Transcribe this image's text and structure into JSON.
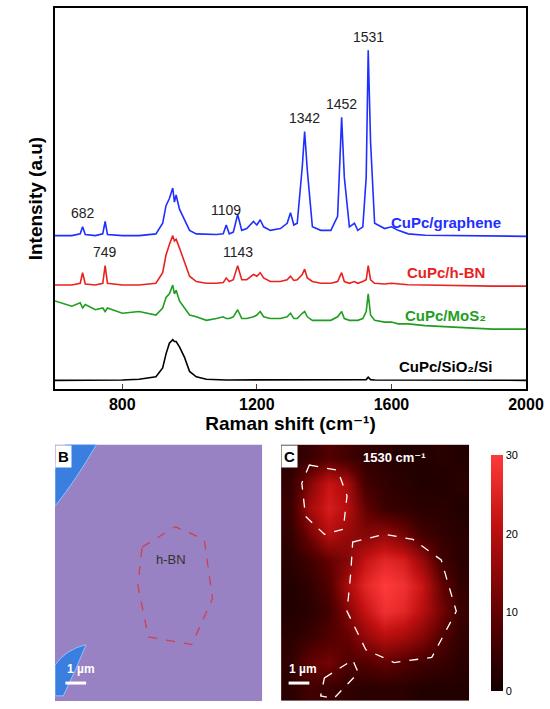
{
  "chart_data": [
    {
      "type": "line",
      "xlabel": "Raman shift (cm⁻¹)",
      "ylabel": "Intensity (a.u)",
      "xlim": [
        600,
        2000
      ],
      "xticks": [
        800,
        1200,
        1600,
        2000
      ],
      "ylim": [
        0,
        108
      ],
      "tick_labels": "x",
      "grid": false,
      "x": [
        600,
        650,
        675,
        682,
        690,
        720,
        742,
        749,
        756,
        800,
        850,
        900,
        920,
        930,
        940,
        950,
        955,
        960,
        970,
        985,
        1000,
        1020,
        1050,
        1080,
        1100,
        1109,
        1118,
        1130,
        1143,
        1155,
        1170,
        1190,
        1200,
        1210,
        1220,
        1240,
        1270,
        1290,
        1300,
        1310,
        1320,
        1335,
        1342,
        1350,
        1365,
        1390,
        1420,
        1440,
        1452,
        1460,
        1475,
        1490,
        1500,
        1515,
        1525,
        1531,
        1538,
        1550,
        1580,
        1600,
        1620,
        1650,
        1700,
        1800,
        1900,
        2000
      ],
      "series": [
        {
          "name": "CuPc/graphene",
          "color": "#1f2fff",
          "values": [
            43.5,
            43.5,
            44,
            46,
            43.8,
            43.5,
            44,
            47.5,
            43.8,
            43.5,
            43.5,
            44,
            47,
            52,
            54,
            57,
            53,
            55,
            51,
            48,
            45,
            44,
            43.8,
            43.8,
            44,
            46.5,
            44,
            44.5,
            49.5,
            45,
            45.5,
            47.5,
            46.5,
            48,
            46,
            45,
            45.5,
            47,
            50,
            46.5,
            47,
            63,
            73,
            62,
            46,
            45,
            45,
            49,
            77,
            60,
            46,
            47,
            45,
            46,
            60,
            96,
            70,
            47,
            45.5,
            46,
            45,
            44,
            43.6,
            43.5,
            43.3,
            43.3
          ]
        },
        {
          "name": "CuPc/h-BN",
          "color": "#e8231f",
          "values": [
            29.5,
            29.5,
            30,
            33,
            29.8,
            29.5,
            30,
            35,
            30,
            29.5,
            29.5,
            30,
            33,
            38,
            41,
            43.5,
            42,
            42.5,
            40,
            36,
            32,
            30.5,
            30,
            30,
            30.2,
            31.5,
            30.5,
            31,
            35,
            31,
            31,
            32.5,
            32,
            33,
            31.5,
            30.5,
            30.5,
            31,
            32,
            30.8,
            31,
            32.5,
            34,
            31.5,
            30.5,
            30,
            30,
            30.5,
            33,
            30.5,
            30,
            30.5,
            30,
            30.5,
            31,
            35,
            31,
            30,
            29.8,
            30,
            29.8,
            29.6,
            29.5,
            29.3,
            29.2,
            29.2
          ]
        },
        {
          "name": "CuPc/MoS₂",
          "color": "#1f9e1f",
          "values": [
            25,
            23.5,
            24.5,
            23,
            24,
            22.5,
            23,
            22,
            23,
            21.5,
            22,
            21,
            23,
            26,
            27,
            29.5,
            27,
            28,
            25,
            23,
            21,
            20.5,
            19.5,
            20,
            20.5,
            20,
            20,
            20.5,
            22.5,
            20,
            20,
            20.5,
            21,
            22,
            20.5,
            20,
            20,
            20.5,
            21.5,
            20,
            20,
            21.5,
            22,
            20.5,
            19.5,
            19.5,
            19.5,
            20.5,
            22,
            20,
            19.5,
            19.5,
            19.5,
            20,
            22,
            27,
            21,
            19.5,
            19,
            19,
            18.5,
            18.5,
            18,
            17.5,
            17,
            17
          ]
        },
        {
          "name": "CuPc/SiO₂/Si",
          "color": "#000000",
          "values": [
            2.5,
            2.5,
            2.5,
            2.5,
            2.5,
            2.5,
            2.5,
            2.6,
            2.5,
            2.6,
            2.8,
            3.5,
            6,
            10,
            13,
            14,
            13.5,
            13.5,
            12,
            9,
            5,
            3.5,
            2.8,
            2.6,
            2.6,
            2.6,
            2.6,
            2.6,
            2.7,
            2.6,
            2.6,
            2.6,
            2.6,
            2.6,
            2.6,
            2.6,
            2.6,
            2.6,
            2.7,
            2.6,
            2.6,
            2.7,
            2.8,
            2.6,
            2.6,
            2.6,
            2.6,
            2.6,
            2.8,
            2.6,
            2.6,
            2.6,
            2.6,
            2.6,
            2.7,
            3.4,
            2.7,
            2.6,
            2.6,
            2.5,
            2.5,
            2.5,
            2.5,
            2.5,
            2.5,
            2.5
          ]
        }
      ],
      "annotations": [
        {
          "text": "682",
          "x": 682,
          "y": 47
        },
        {
          "text": "749",
          "x": 749,
          "y": 36
        },
        {
          "text": "1109",
          "x": 1109,
          "y": 48
        },
        {
          "text": "1143",
          "x": 1143,
          "y": 36
        },
        {
          "text": "1342",
          "x": 1342,
          "y": 74
        },
        {
          "text": "1452",
          "x": 1452,
          "y": 78
        },
        {
          "text": "1531",
          "x": 1531,
          "y": 97
        }
      ]
    },
    {
      "type": "heatmap",
      "panel_letter": "C",
      "title": "1530 cm⁻¹",
      "scale_bar": "1 µm",
      "tick_labels": false,
      "z": [
        [
          3,
          5,
          8,
          6,
          4,
          3,
          2,
          2,
          3,
          2
        ],
        [
          4,
          14,
          22,
          18,
          6,
          4,
          3,
          2,
          2,
          3
        ],
        [
          5,
          18,
          24,
          20,
          10,
          5,
          4,
          3,
          3,
          2
        ],
        [
          4,
          12,
          20,
          16,
          14,
          16,
          12,
          6,
          4,
          3
        ],
        [
          3,
          6,
          10,
          14,
          22,
          26,
          24,
          16,
          6,
          3
        ],
        [
          2,
          4,
          8,
          18,
          26,
          30,
          28,
          22,
          10,
          4
        ],
        [
          2,
          3,
          6,
          14,
          22,
          28,
          26,
          20,
          12,
          5
        ],
        [
          3,
          5,
          8,
          10,
          16,
          20,
          18,
          14,
          8,
          4
        ],
        [
          4,
          10,
          12,
          8,
          8,
          10,
          8,
          6,
          5,
          3
        ],
        [
          3,
          6,
          5,
          4,
          3,
          3,
          3,
          2,
          2,
          2
        ]
      ],
      "zlim": [
        0,
        30
      ],
      "zticks": [
        0,
        10,
        20,
        30
      ]
    }
  ],
  "image_panel": {
    "panel_letter": "B",
    "labels": [
      "h-BN"
    ],
    "scale_bar": "1 µm"
  }
}
